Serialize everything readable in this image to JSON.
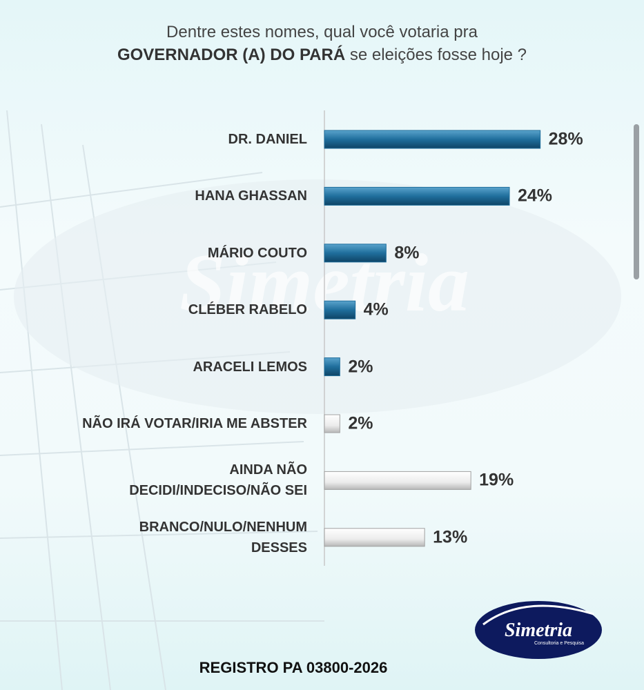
{
  "chart_data": {
    "type": "barh",
    "title_parts": [
      "Dentre estes nomes, qual você votaria pra",
      "GOVERNADOR (A) DO PARÁ",
      "se eleições fosse hoje ?"
    ],
    "categories": [
      "DR. DANIEL",
      "HANA GHASSAN",
      "MÁRIO COUTO",
      "CLÉBER RABELO",
      "ARACELI LEMOS",
      "NÃO IRÁ VOTAR/IRIA ME ABSTER",
      "AINDA NÃO\nDECIDI/INDECISO/NÃO SEI",
      "BRANCO/NULO/NENHUM\nDESSES"
    ],
    "values": [
      28,
      24,
      8,
      4,
      2,
      2,
      19,
      13
    ],
    "value_labels": [
      "28%",
      "24%",
      "8%",
      "4%",
      "2%",
      "2%",
      "19%",
      "13%"
    ],
    "colors": [
      "#1f6e9c",
      "#1f6e9c",
      "#1f6e9c",
      "#1f6e9c",
      "#1f6e9c",
      "#e8e8e8",
      "#e8e8e8",
      "#e8e8e8"
    ],
    "xlim": [
      0,
      30
    ]
  },
  "footer": "REGISTRO PA 03800-2026",
  "logo": {
    "name": "Simetria",
    "tagline": "Consultoria e Pesquisa"
  }
}
